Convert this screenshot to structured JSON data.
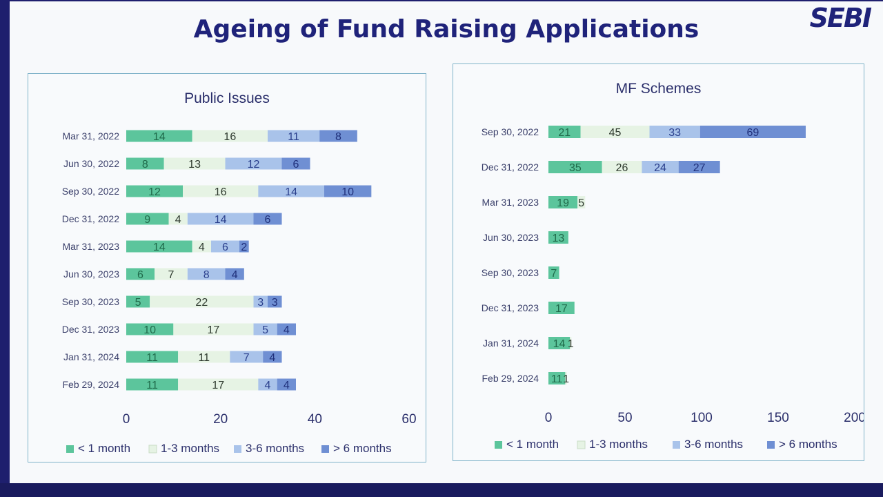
{
  "slide": {
    "title": "Ageing of Fund Raising Applications",
    "logo": "SEBI"
  },
  "colors": {
    "lt1": "#5cc59c",
    "m1_3": "#e6f3e4",
    "m3_6": "#a9c3ea",
    "gt6": "#6f8fd3"
  },
  "chart_data": [
    {
      "type": "bar",
      "orientation": "horizontal",
      "stacked": true,
      "title": "Public Issues",
      "categories": [
        "Mar 31, 2022",
        "Jun 30, 2022",
        "Sep 30, 2022",
        "Dec 31, 2022",
        "Mar 31, 2023",
        "Jun 30, 2023",
        "Sep 30, 2023",
        "Dec 31, 2023",
        "Jan 31, 2024",
        "Feb 29, 2024"
      ],
      "series": [
        {
          "name": "< 1 month",
          "values": [
            14,
            8,
            12,
            9,
            14,
            6,
            5,
            10,
            11,
            11
          ]
        },
        {
          "name": "1-3 months",
          "values": [
            16,
            13,
            16,
            4,
            4,
            7,
            22,
            17,
            11,
            17
          ]
        },
        {
          "name": "3-6 months",
          "values": [
            11,
            12,
            14,
            14,
            6,
            8,
            3,
            5,
            7,
            4
          ]
        },
        {
          "name": "> 6 months",
          "values": [
            8,
            6,
            10,
            6,
            2,
            4,
            3,
            4,
            4,
            4
          ]
        }
      ],
      "xlim": [
        0,
        60
      ],
      "xticks": [
        0,
        20,
        40,
        60
      ],
      "legend": "bottom"
    },
    {
      "type": "bar",
      "orientation": "horizontal",
      "stacked": true,
      "title": "MF Schemes",
      "categories": [
        "Sep 30, 2022",
        "Dec 31, 2022",
        "Mar 31, 2023",
        "Jun 30, 2023",
        "Sep 30, 2023",
        "Dec 31, 2023",
        "Jan 31, 2024",
        "Feb 29, 2024"
      ],
      "series": [
        {
          "name": "< 1 month",
          "values": [
            21,
            35,
            19,
            13,
            7,
            17,
            14,
            11
          ]
        },
        {
          "name": "1-3 months",
          "values": [
            45,
            26,
            5,
            0,
            0,
            0,
            1,
            1
          ]
        },
        {
          "name": "3-6 months",
          "values": [
            33,
            24,
            0,
            0,
            0,
            0,
            0,
            0
          ]
        },
        {
          "name": "> 6 months",
          "values": [
            69,
            27,
            0,
            0,
            0,
            0,
            0,
            0
          ]
        }
      ],
      "xlim": [
        0,
        200
      ],
      "xticks": [
        0,
        50,
        100,
        150,
        200
      ],
      "legend": "bottom"
    }
  ]
}
